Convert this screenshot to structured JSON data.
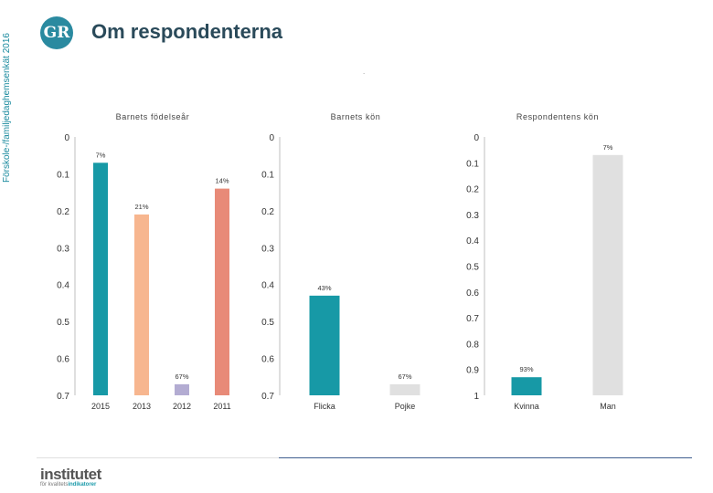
{
  "side_label": "Förskole-/familjedaghemsenkät 2016",
  "logo_text": "GR",
  "page_title": "Om respondenterna",
  "page_dot": ".",
  "brand": {
    "name": "institutet",
    "sub_prefix": "för kvalitets",
    "sub_bold": "indikatorer"
  },
  "colors": {
    "teal": "#1799a6",
    "lightgray": "#e0e0e0",
    "peach": "#f7b68f",
    "lavender": "#b3acd2",
    "salmon": "#e88a78"
  },
  "chart_data": [
    {
      "type": "bar",
      "title": "Barnets födelseår",
      "yticks": [
        "0",
        "0.1",
        "0.2",
        "0.3",
        "0.4",
        "0.5",
        "0.6",
        "0.7"
      ],
      "ylim": [
        0,
        0.7
      ],
      "inverted_axis": true,
      "categories": [
        "2015",
        "2013",
        "2012",
        "2011"
      ],
      "values": [
        0.07,
        0.21,
        0.67,
        0.14
      ],
      "labels": [
        "7%",
        "21%",
        "67%",
        "14%"
      ],
      "colors": [
        "#1799a6",
        "#f7b68f",
        "#b3acd2",
        "#e88a78"
      ]
    },
    {
      "type": "bar",
      "title": "Barnets kön",
      "yticks": [
        "0",
        "0.1",
        "0.2",
        "0.3",
        "0.4",
        "0.5",
        "0.6",
        "0.7"
      ],
      "ylim": [
        0,
        0.7
      ],
      "inverted_axis": true,
      "categories": [
        "Flicka",
        "Pojke"
      ],
      "values": [
        0.43,
        0.67
      ],
      "labels": [
        "43%",
        "67%"
      ],
      "colors": [
        "#1799a6",
        "#e0e0e0"
      ]
    },
    {
      "type": "bar",
      "title": "Respondentens kön",
      "yticks": [
        "0",
        "0.1",
        "0.2",
        "0.3",
        "0.4",
        "0.5",
        "0.6",
        "0.7",
        "0.8",
        "0.9",
        "1"
      ],
      "ylim": [
        0,
        1
      ],
      "inverted_axis": true,
      "categories": [
        "Kvinna",
        "Man"
      ],
      "values": [
        0.93,
        0.07
      ],
      "labels": [
        "93%",
        "7%"
      ],
      "colors": [
        "#1799a6",
        "#e0e0e0"
      ]
    }
  ]
}
